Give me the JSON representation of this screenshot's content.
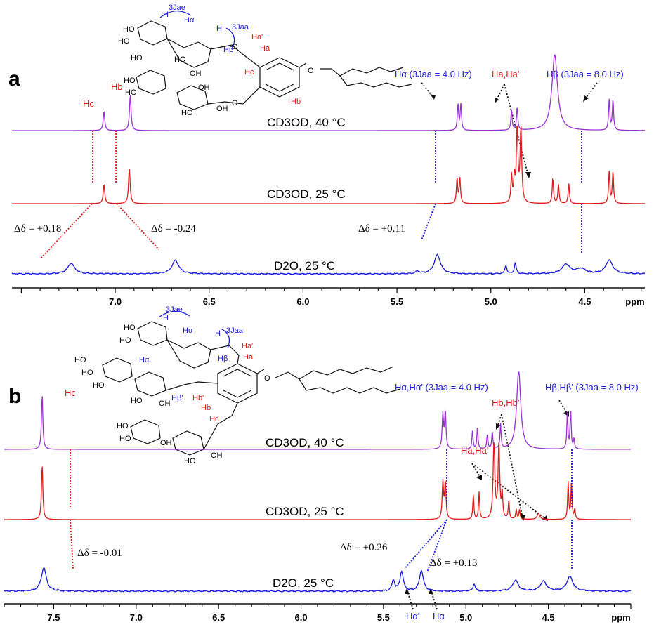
{
  "figure": {
    "panels": [
      {
        "label": "a",
        "traces": [
          {
            "label": "CD3OD, 40 °C",
            "color": "#9b30d9"
          },
          {
            "label": "CD3OD, 25 °C",
            "color": "#e31a1a"
          },
          {
            "label": "D2O, 25 °C",
            "color": "#1a1adf"
          }
        ],
        "annotations": {
          "hc": "Hc",
          "hb": "Hb",
          "halpha": "Hα (3Jaa = 4.0 Hz)",
          "haa": "Ha,Ha'",
          "hbeta": "Hβ (3Jaa = 8.0 Hz)",
          "d1": "Δδ = +0.18",
          "d2": "Δδ = -0.24",
          "d3": "Δδ = +0.11"
        },
        "structure": {
          "j_ae": "3Jae",
          "j_aa": "3Jaa",
          "h": "H",
          "h_alpha": "Hα",
          "h_beta": "Hβ",
          "ha_prime": "Ha'",
          "ha": "Ha",
          "hc": "Hc",
          "hb": "Hb",
          "ho": "HO",
          "oh": "OH",
          "o": "O"
        }
      },
      {
        "label": "b",
        "traces": [
          {
            "label": "CD3OD, 40 °C",
            "color": "#9b30d9"
          },
          {
            "label": "CD3OD, 25 °C",
            "color": "#e31a1a"
          },
          {
            "label": "D2O, 25 °C",
            "color": "#1a1adf"
          }
        ],
        "annotations": {
          "hc": "Hc",
          "halpha": "Hα,Hα' (3Jaa = 4.0 Hz)",
          "hbb": "Hb,Hb'",
          "haa": "Ha,Ha'",
          "hbeta": "Hβ,Hβ' (3Jaa = 8.0 Hz)",
          "d1": "Δδ = -0.01",
          "d2": "Δδ = +0.26",
          "d3": "Δδ = +0.13",
          "halpha_prime_bottom": "Hα'",
          "halpha_bottom": "Hα"
        },
        "structure": {
          "j_ae": "3Jae",
          "j_aa": "3Jaa",
          "h": "H",
          "h_alpha": "Hα",
          "h_alpha_prime": "Hα'",
          "h_beta": "Hβ",
          "h_beta_prime": "Hβ'",
          "ha_prime": "Ha'",
          "ha": "Ha",
          "hb": "Hb",
          "hb_prime": "Hb'",
          "hc": "Hc",
          "ho": "HO",
          "oh": "OH",
          "o": "O"
        }
      }
    ]
  },
  "chart_data": [
    {
      "type": "line",
      "title": "a",
      "xlabel": "ppm",
      "xlim": [
        7.55,
        4.18
      ],
      "x_ticks": [
        "7.0",
        "6.5",
        "6.0",
        "5.5",
        "5.0",
        "4.5"
      ],
      "series": [
        {
          "name": "CD3OD, 40 °C",
          "peaks": [
            {
              "ppm": 7.06,
              "height": 0.45,
              "width": 0.005
            },
            {
              "ppm": 6.92,
              "height": 0.85,
              "width": 0.005
            },
            {
              "ppm": 5.175,
              "height": 0.62,
              "width": 0.004
            },
            {
              "ppm": 5.16,
              "height": 0.62,
              "width": 0.004
            },
            {
              "ppm": 4.89,
              "height": 0.48,
              "width": 0.004
            },
            {
              "ppm": 4.86,
              "height": 0.55,
              "width": 0.004
            },
            {
              "ppm": 4.66,
              "height": 1.8,
              "width": 0.018
            },
            {
              "ppm": 4.37,
              "height": 0.72,
              "width": 0.004
            },
            {
              "ppm": 4.35,
              "height": 0.72,
              "width": 0.004
            }
          ]
        },
        {
          "name": "CD3OD, 25 °C",
          "peaks": [
            {
              "ppm": 7.06,
              "height": 0.45,
              "width": 0.005
            },
            {
              "ppm": 6.925,
              "height": 0.85,
              "width": 0.005
            },
            {
              "ppm": 5.18,
              "height": 0.6,
              "width": 0.004
            },
            {
              "ppm": 5.165,
              "height": 0.6,
              "width": 0.004
            },
            {
              "ppm": 4.89,
              "height": 0.65,
              "width": 0.004
            },
            {
              "ppm": 4.875,
              "height": 0.6,
              "width": 0.004
            },
            {
              "ppm": 4.86,
              "height": 1.8,
              "width": 0.005
            },
            {
              "ppm": 4.84,
              "height": 1.8,
              "width": 0.005
            },
            {
              "ppm": 4.67,
              "height": 0.6,
              "width": 0.004
            },
            {
              "ppm": 4.64,
              "height": 0.45,
              "width": 0.004
            },
            {
              "ppm": 4.585,
              "height": 0.48,
              "width": 0.004
            },
            {
              "ppm": 4.37,
              "height": 0.75,
              "width": 0.004
            },
            {
              "ppm": 4.35,
              "height": 0.75,
              "width": 0.004
            }
          ]
        },
        {
          "name": "D2O, 25 °C",
          "peaks": [
            {
              "ppm": 7.235,
              "height": 0.25,
              "width": 0.022
            },
            {
              "ppm": 6.68,
              "height": 0.32,
              "width": 0.022
            },
            {
              "ppm": 5.39,
              "height": 0.06,
              "width": 0.012
            },
            {
              "ppm": 5.285,
              "height": 0.45,
              "width": 0.02
            },
            {
              "ppm": 4.92,
              "height": 0.2,
              "width": 0.006
            },
            {
              "ppm": 4.87,
              "height": 0.25,
              "width": 0.006
            },
            {
              "ppm": 4.6,
              "height": 0.22,
              "width": 0.025
            },
            {
              "ppm": 4.52,
              "height": 0.12,
              "width": 0.03
            },
            {
              "ppm": 4.37,
              "height": 0.32,
              "width": 0.022
            }
          ]
        }
      ]
    },
    {
      "type": "line",
      "title": "b",
      "xlabel": "ppm",
      "xlim": [
        7.8,
        4.0
      ],
      "x_ticks": [
        "7.5",
        "7.0",
        "6.5",
        "6.0",
        "5.5",
        "5.0",
        "4.5"
      ],
      "series": [
        {
          "name": "CD3OD, 40 °C",
          "peaks": [
            {
              "ppm": 7.57,
              "height": 1.1,
              "width": 0.005
            },
            {
              "ppm": 5.14,
              "height": 0.7,
              "width": 0.005
            },
            {
              "ppm": 5.125,
              "height": 0.75,
              "width": 0.005
            },
            {
              "ppm": 4.96,
              "height": 0.38,
              "width": 0.004
            },
            {
              "ppm": 4.93,
              "height": 0.45,
              "width": 0.004
            },
            {
              "ppm": 4.87,
              "height": 0.3,
              "width": 0.004
            },
            {
              "ppm": 4.84,
              "height": 0.35,
              "width": 0.004
            },
            {
              "ppm": 4.79,
              "height": 0.5,
              "width": 0.004
            },
            {
              "ppm": 4.68,
              "height": 1.6,
              "width": 0.015
            },
            {
              "ppm": 4.385,
              "height": 0.72,
              "width": 0.004
            },
            {
              "ppm": 4.365,
              "height": 0.8,
              "width": 0.004
            },
            {
              "ppm": 4.345,
              "height": 0.2,
              "width": 0.004
            }
          ]
        },
        {
          "name": "CD3OD, 25 °C",
          "peaks": [
            {
              "ppm": 7.57,
              "height": 1.1,
              "width": 0.005
            },
            {
              "ppm": 5.14,
              "height": 0.75,
              "width": 0.005
            },
            {
              "ppm": 5.125,
              "height": 0.75,
              "width": 0.005
            },
            {
              "ppm": 4.955,
              "height": 0.5,
              "width": 0.004
            },
            {
              "ppm": 4.92,
              "height": 0.55,
              "width": 0.004
            },
            {
              "ppm": 4.83,
              "height": 1.6,
              "width": 0.006
            },
            {
              "ppm": 4.8,
              "height": 1.5,
              "width": 0.006
            },
            {
              "ppm": 4.78,
              "height": 0.5,
              "width": 0.004
            },
            {
              "ppm": 4.74,
              "height": 0.38,
              "width": 0.004
            },
            {
              "ppm": 4.695,
              "height": 0.2,
              "width": 0.004
            },
            {
              "ppm": 4.675,
              "height": 0.2,
              "width": 0.004
            },
            {
              "ppm": 4.56,
              "height": 0.12,
              "width": 0.01
            },
            {
              "ppm": 4.38,
              "height": 0.75,
              "width": 0.004
            },
            {
              "ppm": 4.36,
              "height": 0.75,
              "width": 0.004
            },
            {
              "ppm": 4.34,
              "height": 0.2,
              "width": 0.004
            }
          ]
        },
        {
          "name": "D2O, 25 °C",
          "peaks": [
            {
              "ppm": 7.56,
              "height": 0.48,
              "width": 0.018
            },
            {
              "ppm": 5.44,
              "height": 0.22,
              "width": 0.01
            },
            {
              "ppm": 5.39,
              "height": 0.4,
              "width": 0.012
            },
            {
              "ppm": 5.27,
              "height": 0.42,
              "width": 0.014
            },
            {
              "ppm": 4.95,
              "height": 0.15,
              "width": 0.008
            },
            {
              "ppm": 4.7,
              "height": 0.22,
              "width": 0.02
            },
            {
              "ppm": 4.53,
              "height": 0.2,
              "width": 0.022
            },
            {
              "ppm": 4.37,
              "height": 0.3,
              "width": 0.022
            }
          ]
        }
      ]
    }
  ]
}
